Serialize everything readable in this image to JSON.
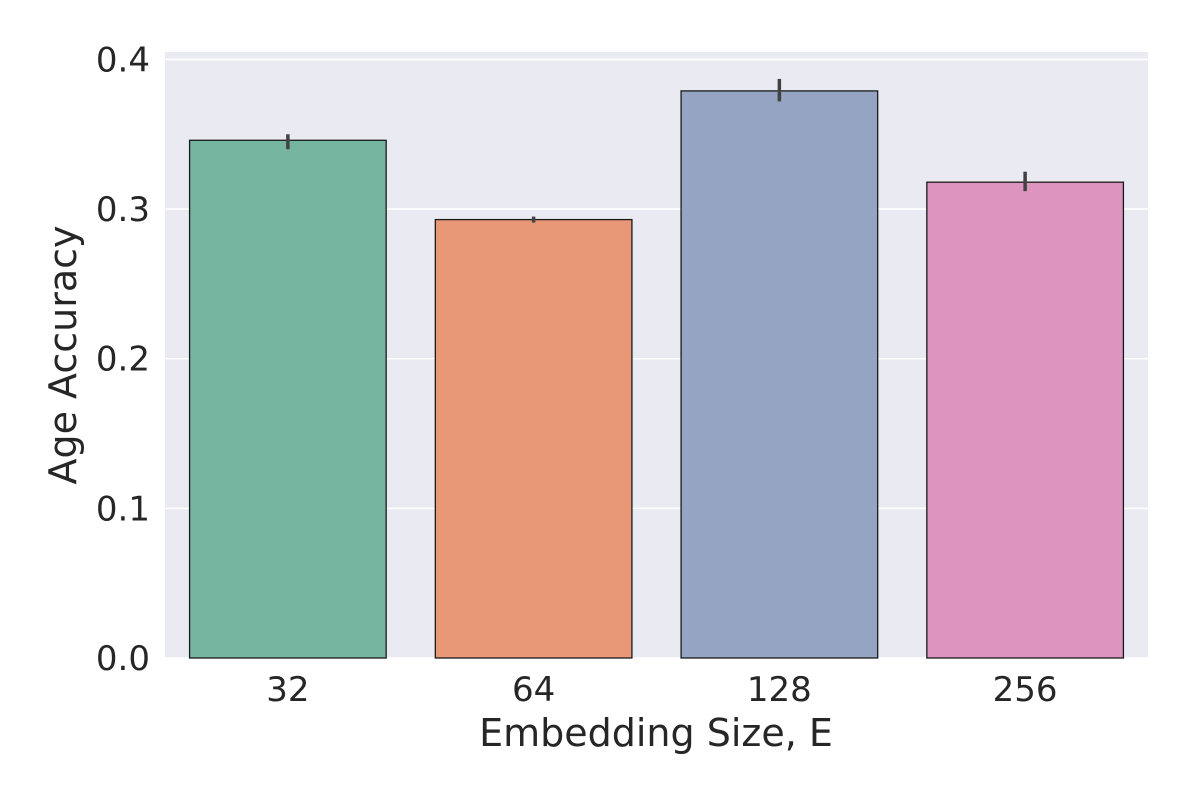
{
  "chart_data": {
    "type": "bar",
    "title": "",
    "xlabel": "Embedding Size, E",
    "ylabel": "Age Accuracy",
    "categories": [
      "32",
      "64",
      "128",
      "256"
    ],
    "values": [
      0.346,
      0.293,
      0.379,
      0.318
    ],
    "error_low": [
      0.34,
      0.291,
      0.372,
      0.312
    ],
    "error_high": [
      0.35,
      0.295,
      0.387,
      0.325
    ],
    "ylim": [
      0,
      0.405
    ],
    "yticks": [
      0.0,
      0.1,
      0.2,
      0.3,
      0.4
    ],
    "ytick_labels": [
      "0.0",
      "0.1",
      "0.2",
      "0.3",
      "0.4"
    ],
    "grid": true,
    "colors": [
      "#76b6a1",
      "#e99877",
      "#95a4c2",
      "#dc95be"
    ],
    "plot_background": "#eaeaf2",
    "error_bar_color": "#424242"
  }
}
